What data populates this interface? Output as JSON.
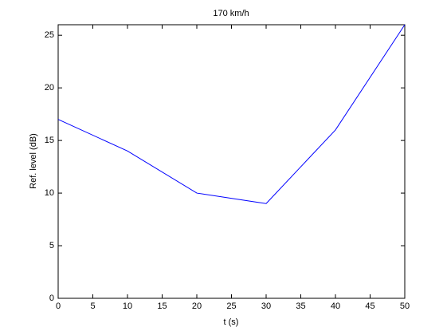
{
  "chart_data": {
    "type": "line",
    "title": "170 km/h",
    "xlabel": "t (s)",
    "ylabel": "Ref. level (dB)",
    "x": [
      0,
      10,
      20,
      30,
      40,
      50
    ],
    "series": [
      {
        "color": "#0000ff",
        "values": [
          17,
          14,
          10,
          9,
          16,
          26
        ]
      }
    ],
    "xlim": [
      0,
      50
    ],
    "xticks": [
      0,
      5,
      10,
      15,
      20,
      25,
      30,
      35,
      40,
      45,
      50
    ],
    "ylim": [
      0,
      26
    ],
    "yticks": [
      0,
      5,
      10,
      15,
      20,
      25
    ],
    "grid": false
  }
}
